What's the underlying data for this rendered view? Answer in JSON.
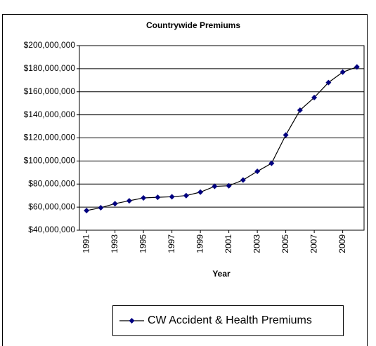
{
  "chart_data": {
    "type": "line",
    "title": "Countrywide Premiums",
    "xlabel": "Year",
    "x": [
      1991,
      1992,
      1993,
      1994,
      1995,
      1996,
      1997,
      1998,
      1999,
      2000,
      2001,
      2002,
      2003,
      2004,
      2005,
      2006,
      2007,
      2008,
      2009,
      2010
    ],
    "series": [
      {
        "name": "CW Accident & Health Premiums",
        "color": "#000080",
        "values": [
          57000000,
          59500000,
          63000000,
          65500000,
          68000000,
          68500000,
          69000000,
          70000000,
          73000000,
          78000000,
          78500000,
          83500000,
          91000000,
          98000000,
          122500000,
          144000000,
          155000000,
          168000000,
          177000000,
          181500000
        ]
      }
    ],
    "xlim": [
      1990.5,
      2010.5
    ],
    "xticks": [
      1991,
      1993,
      1995,
      1997,
      1999,
      2001,
      2003,
      2005,
      2007,
      2009
    ],
    "ylim": [
      40000000,
      200000000
    ],
    "yticks": [
      {
        "value": 40000000,
        "label": "$40,000,000"
      },
      {
        "value": 60000000,
        "label": "$60,000,000"
      },
      {
        "value": 80000000,
        "label": "$80,000,000"
      },
      {
        "value": 100000000,
        "label": "$100,000,000"
      },
      {
        "value": 120000000,
        "label": "$120,000,000"
      },
      {
        "value": 140000000,
        "label": "$140,000,000"
      },
      {
        "value": 160000000,
        "label": "$160,000,000"
      },
      {
        "value": 180000000,
        "label": "$180,000,000"
      },
      {
        "value": 200000000,
        "label": "$200,000,000"
      }
    ],
    "grid": true,
    "legend": "bottom"
  }
}
